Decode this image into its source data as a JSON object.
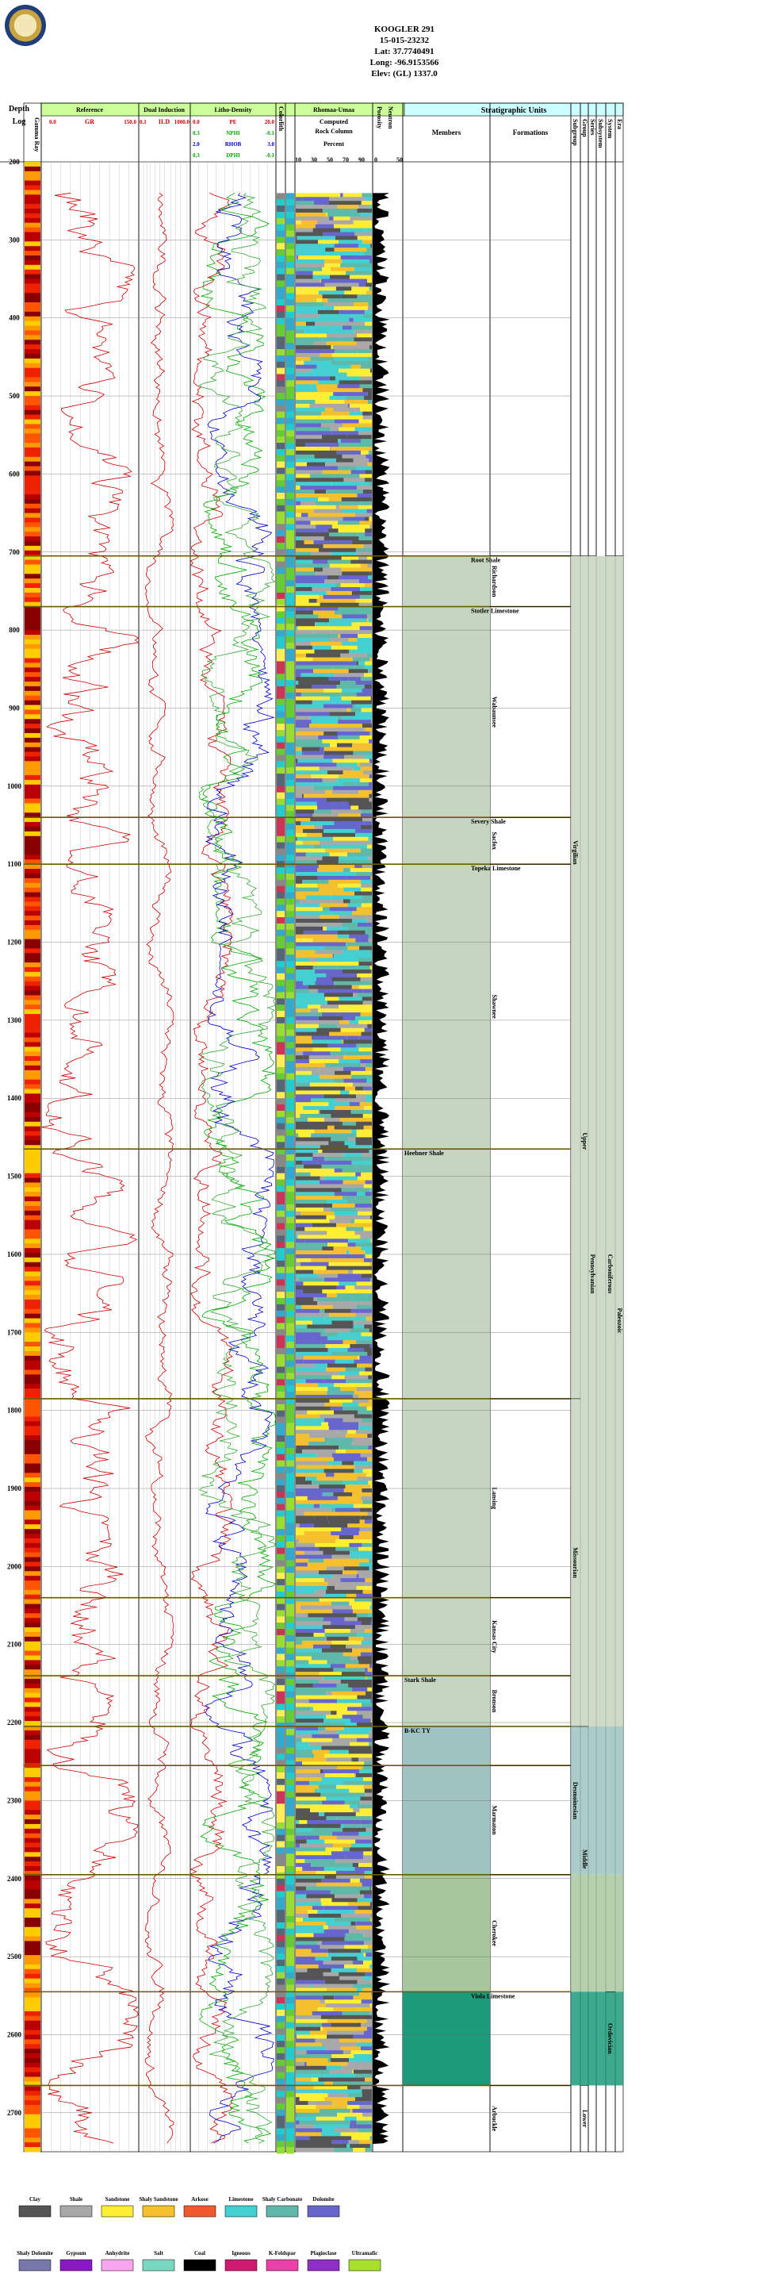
{
  "header": {
    "well_name": "KOOGLER 291",
    "api": "15-015-23232",
    "lat": "Lat: 37.7740491",
    "long": "Long: -96.9153566",
    "elev": "Elev: (GL) 1337.0"
  },
  "columns": {
    "depth": "Depth",
    "log": "Log",
    "gamma_ray": "Gamma Ray",
    "reference": "Reference",
    "gr": "GR",
    "gr_min": "0.0",
    "gr_max": "150.0",
    "dual_induction": "Dual Induction",
    "ild": "ILD",
    "ild_min": "0.1",
    "ild_max": "1000.0",
    "litho_density": "Litho-Density",
    "pe": "PE",
    "pe_min": "0.0",
    "pe_max": "20.0",
    "nphi": "NPHI",
    "nphi_min": "0.3",
    "nphi_max": "-0.1",
    "rhob": "RHOB",
    "rhob_min": "2.0",
    "rhob_max": "3.0",
    "dphi": "DPHI",
    "dphi_min": "0.3",
    "dphi_max": "-0.1",
    "colorlith": "Colorlith",
    "rhomaa_umaa": "Rhomaa-Umaa",
    "rock_column_1": "Computed",
    "rock_column_2": "Rock Column",
    "percent": "Percent",
    "rock_ticks": [
      "10",
      "30",
      "50",
      "70",
      "90"
    ],
    "porosity": "Porosity",
    "neutron": "Neutron",
    "por_ticks": [
      "0",
      "50"
    ],
    "strat_units": "Stratigraphic Units",
    "members": "Members",
    "formations": "Formations",
    "subgroup": "Subgroup",
    "group": "Group",
    "series": "Series",
    "subsystem": "Subsystem",
    "system": "System",
    "era": "Era"
  },
  "chart_data": {
    "type": "well-log",
    "depth_range": [
      200,
      2750
    ],
    "depth_ticks": [
      200,
      300,
      400,
      500,
      600,
      700,
      800,
      900,
      1000,
      1100,
      1200,
      1300,
      1400,
      1500,
      1600,
      1700,
      1800,
      1900,
      2000,
      2100,
      2200,
      2300,
      2400,
      2500,
      2600,
      2700
    ],
    "tops": [
      {
        "depth": 705,
        "label": "Root Shale"
      },
      {
        "depth": 770,
        "label": "Stotler Limestone"
      },
      {
        "depth": 1040,
        "label": "Severy Shale"
      },
      {
        "depth": 1100,
        "label": "Topeka Limestone"
      },
      {
        "depth": 1465,
        "label": "Heebner Shale"
      },
      {
        "depth": 1785,
        "label": ""
      },
      {
        "depth": 2040,
        "label": ""
      },
      {
        "depth": 2140,
        "label": "Stark Shale"
      },
      {
        "depth": 2205,
        "label": "B-KC TY"
      },
      {
        "depth": 2255,
        "label": ""
      },
      {
        "depth": 2395,
        "label": ""
      },
      {
        "depth": 2545,
        "label": "Viola Limestone"
      },
      {
        "depth": 2665,
        "label": ""
      }
    ],
    "members_bands": [
      {
        "from": 705,
        "to": 2205,
        "color": "#c5d5c0"
      },
      {
        "from": 2205,
        "to": 2395,
        "color": "#9ec3c0"
      },
      {
        "from": 2395,
        "to": 2545,
        "color": "#a9c79e"
      },
      {
        "from": 2545,
        "to": 2665,
        "color": "#1d9a7a"
      }
    ],
    "subgroups": [
      {
        "from": 705,
        "to": 770,
        "label": "Richardson"
      },
      {
        "from": 770,
        "to": 1040,
        "label": "Wabaunsee"
      },
      {
        "from": 1040,
        "to": 1100,
        "label": "Sacfox"
      },
      {
        "from": 1100,
        "to": 1465,
        "label": "Shawnee"
      },
      {
        "from": 1785,
        "to": 2040,
        "label": "Lansing"
      },
      {
        "from": 2040,
        "to": 2140,
        "label": "Kansas City"
      },
      {
        "from": 2140,
        "to": 2205,
        "label": "Bronson"
      },
      {
        "from": 2255,
        "to": 2395,
        "label": "Marmaton"
      },
      {
        "from": 2395,
        "to": 2545,
        "label": "Cherokee"
      },
      {
        "from": 2665,
        "to": 2750,
        "label": "Arbuckle"
      }
    ],
    "groups": [
      {
        "from": 705,
        "to": 1465,
        "label": "Virgilian"
      },
      {
        "from": 1785,
        "to": 2205,
        "label": "Missourian"
      },
      {
        "from": 2205,
        "to": 2395,
        "label": "Desmoinesian"
      }
    ],
    "series": [
      {
        "from": 705,
        "to": 2205,
        "label": "Upper"
      },
      {
        "from": 2205,
        "to": 2545,
        "label": "Middle"
      },
      {
        "from": 2665,
        "to": 2750,
        "label": "Lower"
      }
    ],
    "subsystems": [
      {
        "from": 705,
        "to": 2545,
        "label": "Pennsylvanian"
      }
    ],
    "systems": [
      {
        "from": 705,
        "to": 2545,
        "label": "Carboniferous"
      },
      {
        "from": 2545,
        "to": 2665,
        "label": "Ordovician"
      }
    ],
    "eras": [
      {
        "from": 705,
        "to": 2665,
        "label": "Paleozoic"
      }
    ]
  },
  "legend": [
    {
      "label": "Clay",
      "color": "#555555"
    },
    {
      "label": "Shale",
      "color": "#a8a8a8"
    },
    {
      "label": "Sandstone",
      "color": "#ffee33"
    },
    {
      "label": "Shaly Sandstone",
      "color": "#f5c02e"
    },
    {
      "label": "Arkose",
      "color": "#f05a2c"
    },
    {
      "label": "Limestone",
      "color": "#44d0d0"
    },
    {
      "label": "Shaly Carbonate",
      "color": "#5fb9a8"
    },
    {
      "label": "Dolomite",
      "color": "#6666cc"
    },
    {
      "label": "Shaly Dolomite",
      "color": "#7777aa"
    },
    {
      "label": "Gypsum",
      "color": "#8a18c8"
    },
    {
      "label": "Anhydrite",
      "color": "#f7a6ee"
    },
    {
      "label": "Salt",
      "color": "#7ad8c0"
    },
    {
      "label": "Coal",
      "color": "#000000"
    },
    {
      "label": "Igneous",
      "color": "#d01a70"
    },
    {
      "label": "K-Feldspar",
      "color": "#ee3fa8"
    },
    {
      "label": "Plagioclase",
      "color": "#8e2fc8"
    },
    {
      "label": "Ultramafic",
      "color": "#a6e02a"
    }
  ]
}
